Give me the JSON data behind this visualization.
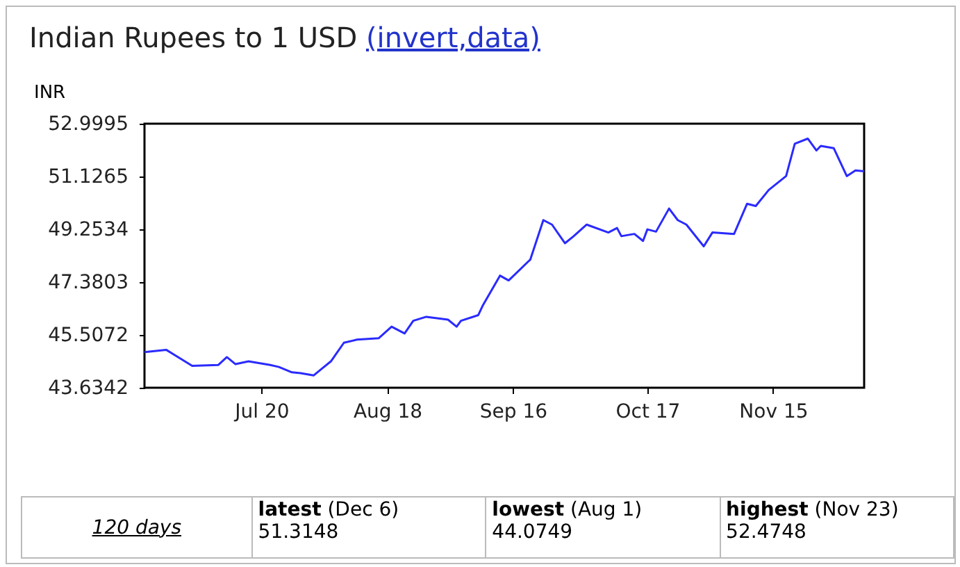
{
  "chart_data": {
    "type": "line",
    "title": "Indian Rupees to 1 USD (invert,data)",
    "ylabel": "INR",
    "x": [
      "--06-23",
      "--06-28",
      "--07-04",
      "--07-10",
      "--07-12",
      "--07-14",
      "--07-17",
      "--07-22",
      "--07-24",
      "--07-27",
      "--07-29",
      "--08-01",
      "--08-03",
      "--08-05",
      "--08-08",
      "--08-11",
      "--08-16",
      "--08-19",
      "--08-22",
      "--08-24",
      "--08-27",
      "--09-01",
      "--09-03",
      "--09-04",
      "--09-08",
      "--09-09",
      "--09-13",
      "--09-15",
      "--09-20",
      "--09-23",
      "--09-25",
      "--09-28",
      "--09-30",
      "--10-03",
      "--10-08",
      "--10-10",
      "--10-11",
      "--10-14",
      "--10-16",
      "--10-17",
      "--10-19",
      "--10-22",
      "--10-24",
      "--10-26",
      "--10-30",
      "--11-01",
      "--11-06",
      "--11-09",
      "--11-11",
      "--11-14",
      "--11-18",
      "--11-20",
      "--11-23",
      "--11-25",
      "--11-26",
      "--11-29",
      "--12-02",
      "--12-04",
      "--12-06"
    ],
    "series": [
      {
        "color": "#2a2aff",
        "values": [
          44.9,
          44.98,
          44.41,
          44.44,
          44.72,
          44.47,
          44.57,
          44.44,
          44.37,
          44.18,
          44.15,
          44.07,
          44.32,
          44.57,
          45.23,
          45.34,
          45.39,
          45.8,
          45.56,
          46.01,
          46.15,
          46.05,
          45.8,
          46.01,
          46.21,
          46.54,
          47.61,
          47.44,
          48.18,
          49.58,
          49.42,
          48.76,
          49.01,
          49.42,
          49.14,
          49.3,
          49.01,
          49.09,
          48.84,
          49.25,
          49.17,
          49.99,
          49.58,
          49.42,
          48.65,
          49.14,
          49.09,
          50.16,
          50.08,
          50.65,
          51.14,
          52.29,
          52.47,
          52.05,
          52.21,
          52.13,
          51.14,
          51.34,
          51.31
        ]
      }
    ],
    "xlim": [
      "--06-23",
      "--12-06"
    ],
    "xticks": [
      {
        "value": "--07-20",
        "label": "Jul 20"
      },
      {
        "value": "--08-18",
        "label": "Aug 18"
      },
      {
        "value": "--09-16",
        "label": "Sep 16"
      },
      {
        "value": "--10-17",
        "label": "Oct 17"
      },
      {
        "value": "--11-15",
        "label": "Nov 15"
      }
    ],
    "ylim": [
      43.6342,
      52.9995
    ],
    "yticks": [
      43.6342,
      45.5072,
      47.3803,
      49.2534,
      51.1265,
      52.9995
    ],
    "grid": false,
    "legend": false,
    "marker": "none",
    "line_style": "solid",
    "annotations": [
      "120 days",
      "latest (Dec 6)",
      "51.3148",
      "lowest (Aug 1)",
      "44.0749",
      "highest (Nov 23)",
      "52.4748"
    ]
  }
}
